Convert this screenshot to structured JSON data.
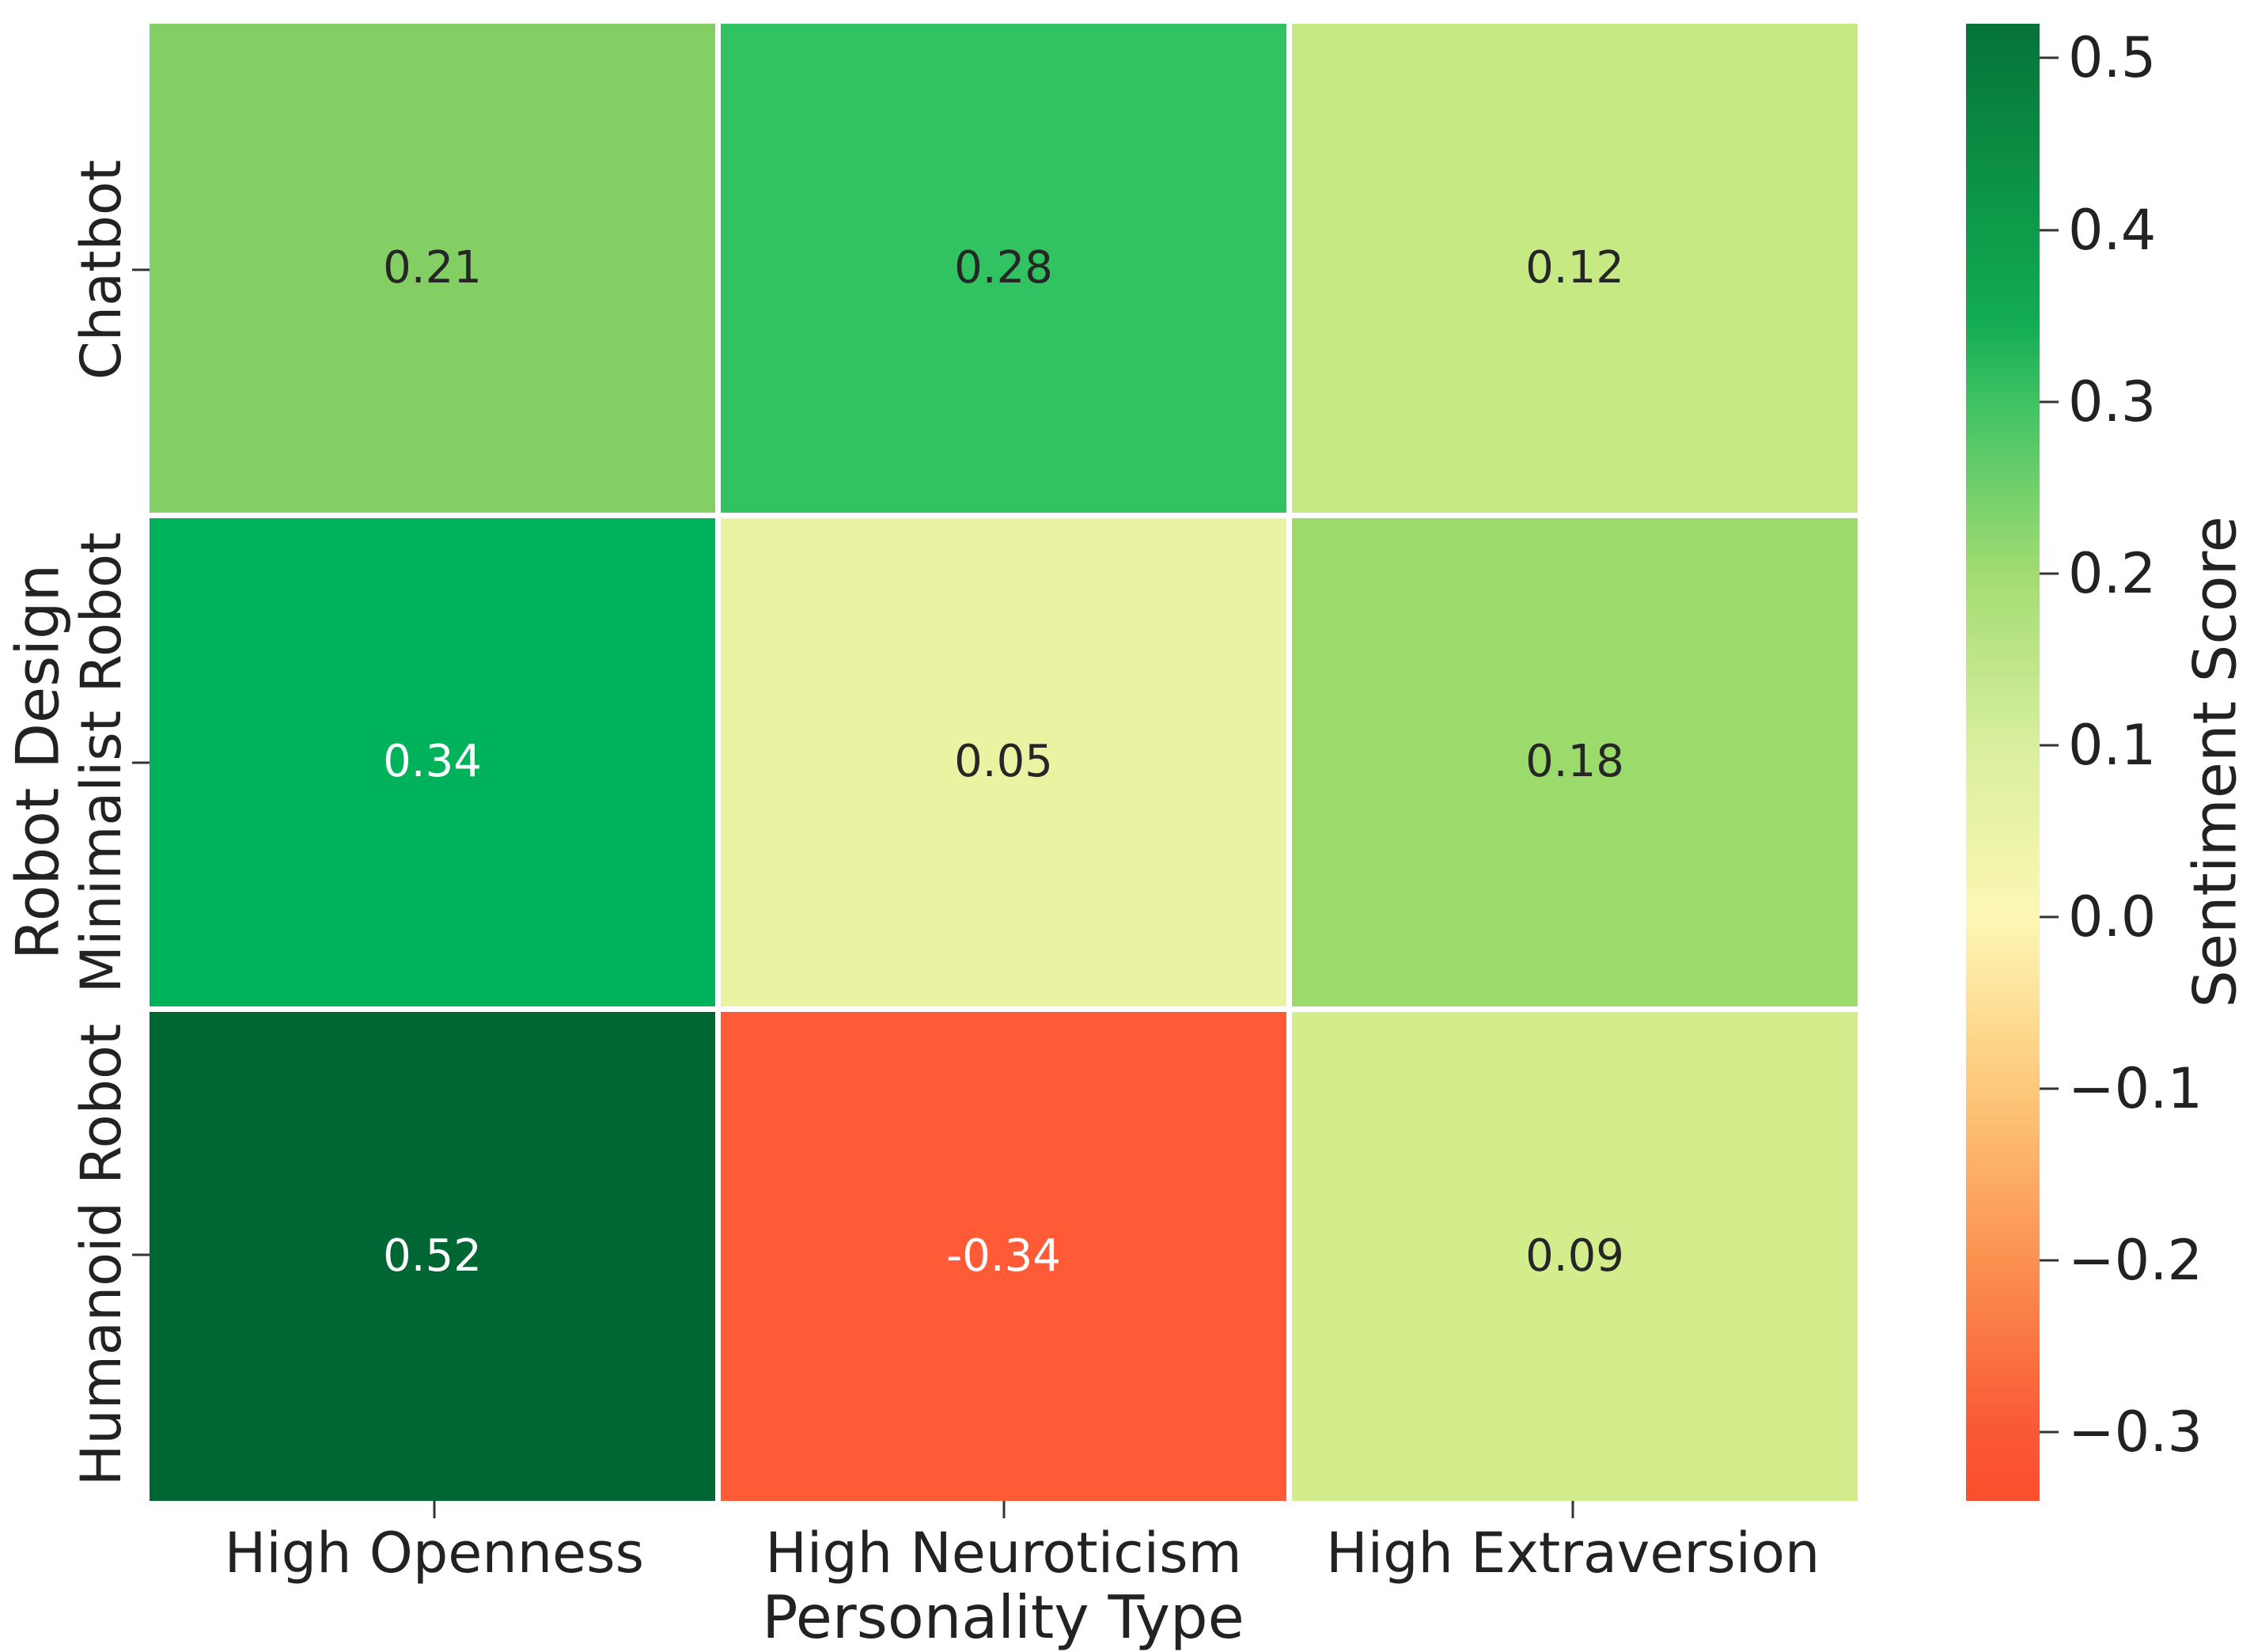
{
  "chart_data": {
    "type": "heatmap",
    "xlabel": "Personality Type",
    "ylabel": "Robot Design",
    "colorbar_label": "Sentiment Score",
    "x_categories": [
      "High Openness",
      "High Neuroticism",
      "High Extraversion"
    ],
    "y_categories": [
      "Chatbot",
      "Minimalist Robot",
      "Humanoid Robot"
    ],
    "values": [
      [
        0.21,
        0.28,
        0.12
      ],
      [
        0.34,
        0.05,
        0.18
      ],
      [
        0.52,
        -0.34,
        0.09
      ]
    ],
    "cell_labels": [
      [
        "0.21",
        "0.28",
        "0.12"
      ],
      [
        "0.34",
        "0.05",
        "0.18"
      ],
      [
        "0.52",
        "-0.34",
        "0.09"
      ]
    ],
    "cell_colors": [
      [
        "#84cf63",
        "#31c261",
        "#c7e984"
      ],
      [
        "#00b35b",
        "#e9f3a1",
        "#9adb6b"
      ],
      [
        "#006633",
        "#fe5b36",
        "#d3ed8d"
      ]
    ],
    "cell_text_colors": [
      [
        "#262626",
        "#262626",
        "#262626"
      ],
      [
        "#ffffff",
        "#262626",
        "#262626"
      ],
      [
        "#ffffff",
        "#ffffff",
        "#262626"
      ]
    ],
    "colorbar_range": [
      -0.34,
      0.52
    ],
    "colorbar_ticks": [
      {
        "label": "0.5",
        "value": 0.5
      },
      {
        "label": "0.4",
        "value": 0.4
      },
      {
        "label": "0.3",
        "value": 0.3
      },
      {
        "label": "0.2",
        "value": 0.2
      },
      {
        "label": "0.1",
        "value": 0.1
      },
      {
        "label": "0.0",
        "value": 0.0
      },
      {
        "label": "−0.1",
        "value": -0.1
      },
      {
        "label": "−0.2",
        "value": -0.2
      },
      {
        "label": "−0.3",
        "value": -0.3
      }
    ],
    "colorbar_gradient_stops": [
      {
        "pos": 0.0,
        "color": "#fb4f2d"
      },
      {
        "pos": 4.65,
        "color": "#f95834"
      },
      {
        "pos": 16.28,
        "color": "#fb9150"
      },
      {
        "pos": 27.91,
        "color": "#fdc97a"
      },
      {
        "pos": 39.53,
        "color": "#fdf7b5"
      },
      {
        "pos": 51.16,
        "color": "#d9ef9e"
      },
      {
        "pos": 62.79,
        "color": "#a2dc72"
      },
      {
        "pos": 74.42,
        "color": "#3ec263"
      },
      {
        "pos": 80.0,
        "color": "#12ab52"
      },
      {
        "pos": 86.05,
        "color": "#0d9c4a"
      },
      {
        "pos": 97.67,
        "color": "#077a3b"
      },
      {
        "pos": 100.0,
        "color": "#067238"
      }
    ],
    "grid_line_color": "#ffffff",
    "tick_color": "#333333",
    "text_color": "#222222"
  }
}
